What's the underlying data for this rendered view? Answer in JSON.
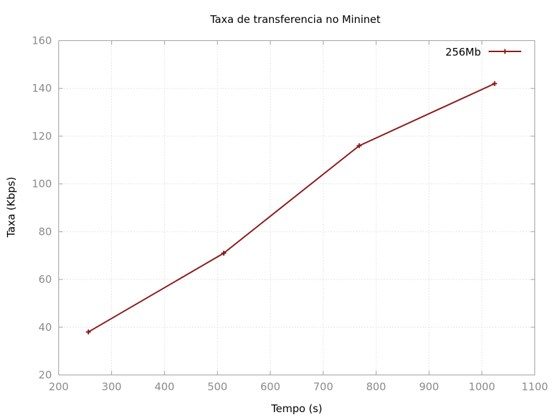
{
  "chart_data": {
    "type": "line",
    "title": "Taxa de transferencia no Mininet",
    "xlabel": "Tempo (s)",
    "ylabel": "Taxa (Kbps)",
    "xlim": [
      200,
      1100
    ],
    "ylim": [
      20,
      160
    ],
    "xticks": [
      200,
      300,
      400,
      500,
      600,
      700,
      800,
      900,
      1000,
      1100
    ],
    "yticks": [
      20,
      40,
      60,
      80,
      100,
      120,
      140,
      160
    ],
    "grid": true,
    "legend_position": "top-right",
    "series": [
      {
        "name": "256Mb",
        "color": "#8b1a1a",
        "marker": "plus",
        "x": [
          256,
          512,
          768,
          1024
        ],
        "y": [
          38,
          71,
          116,
          142
        ]
      }
    ]
  }
}
